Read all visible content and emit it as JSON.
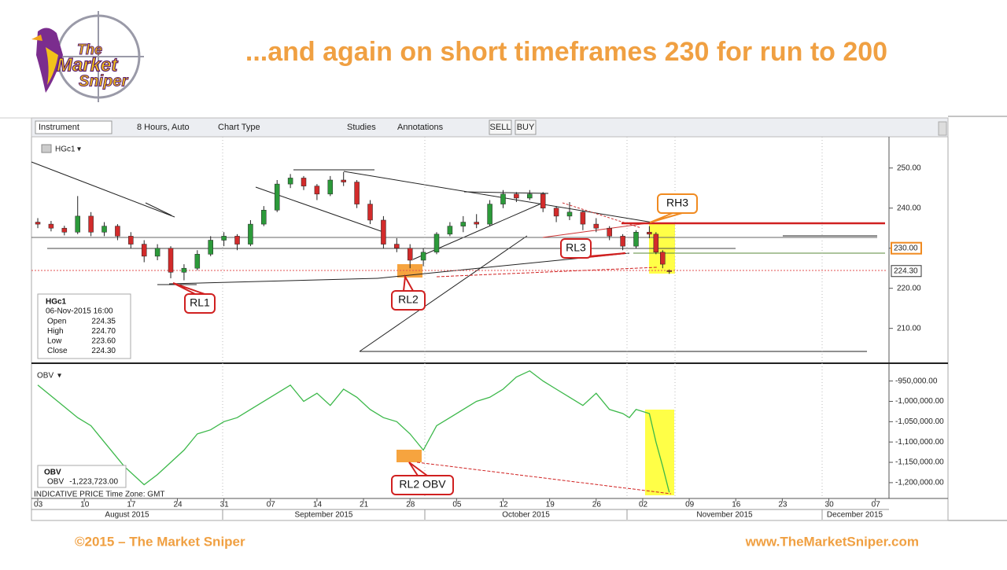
{
  "title": "...and again on short timeframes 230 for run to 200",
  "logo": {
    "line1": "The",
    "line2": "Market",
    "line3": "Sniper"
  },
  "footer": {
    "left": "©2015 – The Market Sniper",
    "right": "www.TheMarketSniper.com"
  },
  "toolbar": {
    "instrument": "Instrument",
    "interval": "8 Hours, Auto",
    "chart_type": "Chart Type",
    "studies": "Studies",
    "annotations": "Annotations",
    "sell": "SELL",
    "buy": "BUY"
  },
  "chart_data": [
    {
      "type": "candlestick",
      "name": "HGc1",
      "up_color": "#2c9a3a",
      "down_color": "#d22b2b",
      "x": [
        0,
        2,
        4,
        6,
        8,
        10,
        12,
        14,
        16,
        18,
        20,
        22,
        24,
        26,
        28,
        30,
        32,
        34,
        36,
        38,
        40,
        42,
        44,
        46,
        48,
        50,
        52,
        54,
        56,
        58,
        60,
        62,
        64,
        66,
        68,
        70,
        72,
        74,
        76,
        78,
        80,
        82,
        84,
        86,
        88,
        90,
        92,
        93,
        94,
        95
      ],
      "open": [
        236.5,
        236.0,
        235.0,
        234.0,
        238.0,
        234.0,
        235.5,
        233.0,
        231.0,
        228.0,
        230.0,
        224.0,
        225.0,
        228.5,
        232.0,
        233.0,
        231.0,
        236.0,
        239.5,
        246.0,
        247.5,
        245.5,
        243.5,
        247.0,
        246.5,
        241.0,
        237.0,
        231.0,
        230.0,
        227.0,
        229.0,
        233.5,
        235.5,
        236.5,
        236.0,
        241.0,
        243.5,
        242.5,
        243.5,
        240.0,
        238.0,
        239.0,
        236.0,
        235.0,
        233.0,
        230.5,
        234.0,
        233.5,
        229.0,
        224.35
      ],
      "high": [
        237.5,
        236.8,
        235.6,
        243.0,
        239.0,
        236.5,
        236.0,
        234.0,
        232.0,
        231.0,
        230.5,
        226.0,
        229.5,
        233.0,
        234.0,
        233.5,
        237.0,
        240.5,
        247.0,
        248.5,
        248.0,
        246.0,
        248.0,
        249.0,
        247.0,
        242.0,
        238.0,
        232.5,
        231.0,
        230.0,
        234.0,
        236.5,
        238.0,
        238.5,
        242.0,
        244.5,
        244.0,
        244.5,
        244.0,
        240.5,
        241.5,
        239.5,
        237.5,
        235.5,
        233.5,
        234.5,
        235.5,
        234.0,
        229.5,
        224.7
      ],
      "low": [
        235.0,
        234.2,
        233.2,
        233.5,
        233.0,
        233.0,
        232.0,
        230.0,
        226.5,
        227.0,
        222.5,
        222.0,
        224.5,
        228.0,
        230.5,
        229.5,
        230.5,
        235.5,
        239.0,
        245.0,
        244.5,
        242.0,
        243.0,
        245.5,
        240.0,
        236.0,
        230.0,
        229.0,
        225.0,
        225.5,
        228.5,
        233.0,
        234.0,
        235.0,
        235.5,
        240.0,
        241.5,
        242.0,
        239.0,
        236.5,
        237.0,
        234.5,
        234.0,
        232.0,
        229.5,
        230.0,
        232.5,
        228.5,
        225.0,
        223.6
      ],
      "close": [
        236.0,
        235.0,
        234.0,
        238.0,
        234.0,
        235.5,
        233.0,
        231.0,
        228.0,
        230.0,
        224.0,
        225.0,
        228.5,
        232.0,
        233.0,
        231.0,
        236.0,
        239.5,
        246.0,
        247.5,
        245.5,
        243.5,
        247.0,
        246.5,
        241.0,
        237.0,
        231.0,
        230.0,
        227.0,
        229.0,
        233.5,
        235.5,
        236.5,
        236.0,
        241.0,
        243.5,
        242.5,
        243.5,
        240.0,
        238.0,
        239.0,
        236.0,
        235.0,
        233.0,
        230.5,
        234.0,
        233.5,
        229.0,
        226.0,
        224.3
      ],
      "xlim": [
        -0.95,
        128.05
      ],
      "ylim": [
        201.7,
        257
      ],
      "yticks": [
        {
          "value": 250,
          "label": "250.00"
        },
        {
          "value": 240,
          "label": "240.00"
        },
        {
          "value": 230,
          "label": "230.00"
        },
        {
          "value": 220,
          "label": "220.00"
        },
        {
          "value": 210,
          "label": "210.00"
        }
      ],
      "price_tags": [
        {
          "value": 230,
          "label": "230.00"
        },
        {
          "value": 224.3,
          "label": "224.30"
        }
      ],
      "info": {
        "title": "HGc1",
        "date": "06-Nov-2015 16:00",
        "rows": [
          {
            "label": "Open",
            "value": "224.35"
          },
          {
            "label": "High",
            "value": "224.70"
          },
          {
            "label": "Low",
            "value": "223.60"
          },
          {
            "label": "Close",
            "value": "224.30"
          }
        ]
      },
      "annotations": [
        "RH3",
        "RL3",
        "RL2",
        "RL1"
      ]
    },
    {
      "type": "line",
      "name": "OBV",
      "color": "#3cb84a",
      "x": [
        0,
        3,
        6,
        8,
        10,
        13,
        16,
        18,
        20,
        22,
        24,
        26,
        28,
        30,
        32,
        35,
        38,
        40,
        42,
        44,
        46,
        48,
        50,
        52,
        54,
        56,
        58,
        60,
        62,
        64,
        66,
        68,
        70,
        72,
        74,
        76,
        78,
        80,
        82,
        84,
        86,
        88,
        89,
        90,
        92,
        93,
        94,
        95
      ],
      "values": [
        -960000,
        -1000000,
        -1040000,
        -1060000,
        -1100000,
        -1160000,
        -1205000,
        -1180000,
        -1150000,
        -1120000,
        -1080000,
        -1070000,
        -1050000,
        -1040000,
        -1020000,
        -990000,
        -960000,
        -1000000,
        -980000,
        -1010000,
        -970000,
        -990000,
        -1020000,
        -1040000,
        -1050000,
        -1080000,
        -1120000,
        -1060000,
        -1040000,
        -1020000,
        -1000000,
        -990000,
        -970000,
        -940000,
        -925000,
        -950000,
        -970000,
        -990000,
        -1010000,
        -980000,
        -1020000,
        -1030000,
        -1040000,
        -1020000,
        -1030000,
        -1100000,
        -1160000,
        -1223723
      ],
      "xlim": [
        -0.95,
        128.05
      ],
      "ylim": [
        -1235000,
        -912000
      ],
      "yticks": [
        {
          "value": -950000,
          "label": "-950,000.00"
        },
        {
          "value": -1000000,
          "label": "-1,000,000.00"
        },
        {
          "value": -1050000,
          "label": "-1,050,000.00"
        },
        {
          "value": -1100000,
          "label": "-1,100,000.00"
        },
        {
          "value": -1150000,
          "label": "-1,150,000.00"
        },
        {
          "value": -1200000,
          "label": "-1,200,000.00"
        }
      ],
      "legend": {
        "title": "OBV",
        "label": "OBV",
        "value": "-1,223,723.00"
      },
      "annotations": [
        "RL2 OBV"
      ],
      "note": "INDICATIVE PRICE   Time Zone: GMT",
      "xticks": [
        {
          "value": 0,
          "label": "03"
        },
        {
          "value": 7,
          "label": "10"
        },
        {
          "value": 14,
          "label": "17"
        },
        {
          "value": 21,
          "label": "24"
        },
        {
          "value": 28,
          "label": "31"
        },
        {
          "value": 35,
          "label": "07"
        },
        {
          "value": 42,
          "label": "14"
        },
        {
          "value": 49,
          "label": "21"
        },
        {
          "value": 56,
          "label": "28"
        },
        {
          "value": 63,
          "label": "05"
        },
        {
          "value": 70,
          "label": "12"
        },
        {
          "value": 77,
          "label": "19"
        },
        {
          "value": 84,
          "label": "26"
        },
        {
          "value": 91,
          "label": "02"
        },
        {
          "value": 98,
          "label": "09"
        },
        {
          "value": 105,
          "label": "16"
        },
        {
          "value": 112,
          "label": "23"
        },
        {
          "value": 119,
          "label": "30"
        },
        {
          "value": 126,
          "label": "07"
        }
      ],
      "months": [
        "August 2015",
        "September 2015",
        "October 2015",
        "November 2015",
        "December 2015"
      ]
    }
  ]
}
